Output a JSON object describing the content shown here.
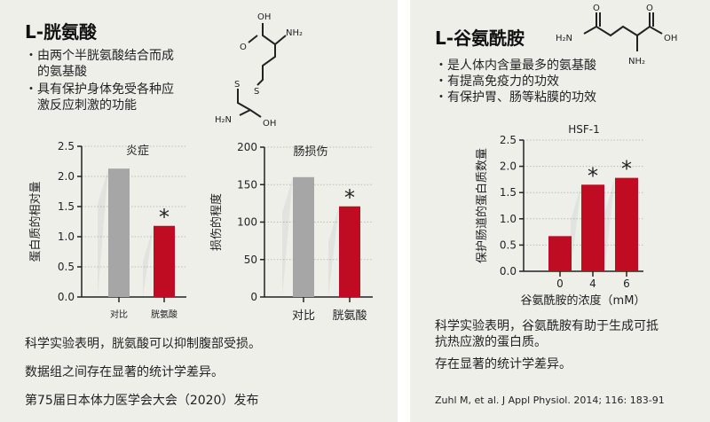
{
  "left": {
    "title": "L-胱氨酸",
    "bullets": [
      "・由两个半胱氨酸结合而成",
      "　的氨基酸",
      "・具有保护身体免受各种应",
      "　激反应刺激的功能"
    ],
    "molecule_labels": [
      "OH",
      "O",
      "NH₂",
      "S",
      "S",
      "H₂N",
      "OH"
    ],
    "texts": [
      "科学实验表明，胱氨酸可以抑制腹部受损。",
      "数据组之间存在显著的统计学差异。",
      "第75届日本体力医学会大会（2020）发布"
    ]
  },
  "right": {
    "title": "L-谷氨酰胺",
    "bullets": [
      "・是人体内含量最多的氨基酸",
      "・有提高免疫力的功效",
      "・有保护胃、肠等粘膜的功效"
    ],
    "molecule_labels": [
      "O",
      "O",
      "H₂N",
      "OH",
      "NH₂"
    ],
    "texts": [
      "科学实验表明，谷氨酰胺有助于生成可抵",
      "抗热应激的蛋白质。",
      "存在显著的统计学差异。"
    ],
    "citation": "Zuhl M, et al. J Appl Physiol. 2014; 116: 183-91"
  },
  "colors": {
    "control": "#a6a6a6",
    "treatment": "#c00c22",
    "background": "#efefea"
  },
  "chart_data": [
    {
      "type": "bar",
      "title": "炎症",
      "ylabel": "蛋白质的相对量",
      "xlabel": "",
      "categories": [
        "对比",
        "胱氨酸"
      ],
      "values": [
        2.13,
        1.18
      ],
      "ylim": [
        0,
        2.5
      ],
      "yticks": [
        "0.0",
        "0.5",
        "1.0",
        "1.5",
        "2.0",
        "2.5"
      ],
      "significance": [
        false,
        true
      ],
      "grid": true
    },
    {
      "type": "bar",
      "title": "肠损伤",
      "ylabel": "损伤的程度",
      "xlabel": "",
      "categories": [
        "对比",
        "胱氨酸"
      ],
      "values": [
        160,
        121
      ],
      "ylim": [
        0,
        200
      ],
      "yticks": [
        "0",
        "50",
        "100",
        "150",
        "200"
      ],
      "significance": [
        false,
        true
      ],
      "grid": true
    },
    {
      "type": "bar",
      "title": "HSF-1",
      "ylabel": "保护肠道的蛋白质数量",
      "xlabel": "谷氨酰胺的浓度（mM）",
      "categories": [
        "0",
        "4",
        "6"
      ],
      "values": [
        0.67,
        1.65,
        1.78
      ],
      "ylim": [
        0,
        2.5
      ],
      "yticks": [
        "0.0",
        "0.5",
        "1.0",
        "1.5",
        "2.0",
        "2.5"
      ],
      "significance": [
        false,
        true,
        true
      ],
      "grid": true
    }
  ]
}
